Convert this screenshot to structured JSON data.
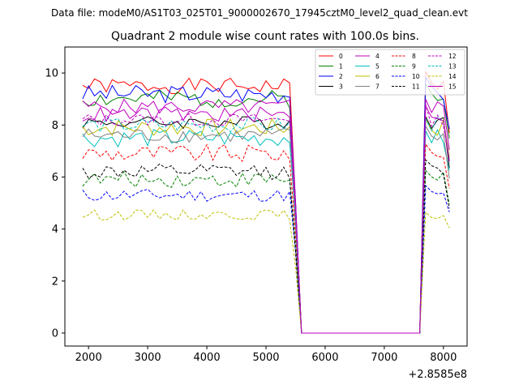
{
  "figure": {
    "suptitle": "Data file: modeM0/AS1T03_025T01_9000002670_17945cztM0_level2_quad_clean.evt",
    "title": "Quadrant 2 module wise count rates with 100.0s bins.",
    "x_offset_label": "+2.8585e8"
  },
  "chart_data": {
    "type": "line",
    "title": "Quadrant 2 module wise count rates with 100.0s bins.",
    "xlabel": "",
    "ylabel": "",
    "x_offset": 285850000,
    "xlim": [
      1600,
      8400
    ],
    "ylim": [
      -0.5,
      11
    ],
    "x_ticks": [
      2000,
      3000,
      4000,
      5000,
      6000,
      7000,
      8000
    ],
    "y_ticks": [
      0,
      2,
      4,
      6,
      8,
      10
    ],
    "grid": false,
    "legend_position": "top-right",
    "series": [
      {
        "name": "0",
        "color": "#ff0000",
        "dash": "solid",
        "base": 9.5,
        "amp": 0.3,
        "seed": 1
      },
      {
        "name": "1",
        "color": "#008000",
        "dash": "solid",
        "base": 9.0,
        "amp": 0.35,
        "seed": 2
      },
      {
        "name": "2",
        "color": "#0000ff",
        "dash": "solid",
        "base": 9.2,
        "amp": 0.35,
        "seed": 3
      },
      {
        "name": "3",
        "color": "#000000",
        "dash": "solid",
        "base": 8.1,
        "amp": 0.25,
        "seed": 4
      },
      {
        "name": "4",
        "color": "#bf00bf",
        "dash": "solid",
        "base": 8.7,
        "amp": 0.3,
        "seed": 5
      },
      {
        "name": "5",
        "color": "#00bfbf",
        "dash": "solid",
        "base": 7.5,
        "amp": 0.35,
        "seed": 6
      },
      {
        "name": "6",
        "color": "#bfbf00",
        "dash": "solid",
        "base": 7.9,
        "amp": 0.35,
        "seed": 7
      },
      {
        "name": "7",
        "color": "#808080",
        "dash": "solid",
        "base": 7.6,
        "amp": 0.3,
        "seed": 8
      },
      {
        "name": "8",
        "color": "#ff0000",
        "dash": "dashed",
        "base": 6.9,
        "amp": 0.35,
        "seed": 9
      },
      {
        "name": "9",
        "color": "#008000",
        "dash": "dashed",
        "base": 5.9,
        "amp": 0.3,
        "seed": 10
      },
      {
        "name": "10",
        "color": "#0000ff",
        "dash": "dashed",
        "base": 5.3,
        "amp": 0.25,
        "seed": 11
      },
      {
        "name": "11",
        "color": "#000000",
        "dash": "dashed",
        "base": 6.2,
        "amp": 0.3,
        "seed": 12
      },
      {
        "name": "12",
        "color": "#bf00bf",
        "dash": "dashed",
        "base": 8.2,
        "amp": 0.25,
        "seed": 13
      },
      {
        "name": "13",
        "color": "#00bfbf",
        "dash": "dashed",
        "base": 8.0,
        "amp": 0.3,
        "seed": 14
      },
      {
        "name": "14",
        "color": "#bfbf00",
        "dash": "dashed",
        "base": 4.55,
        "amp": 0.2,
        "seed": 15
      },
      {
        "name": "15",
        "color": "#bf00bf",
        "dash": "solid",
        "base": 8.4,
        "amp": 0.3,
        "seed": 16
      }
    ],
    "segments": [
      {
        "from": 1900,
        "to": 5500,
        "step": 100,
        "active": true
      },
      {
        "from": 5600,
        "to": 7600,
        "step": 100,
        "active": false
      },
      {
        "from": 7700,
        "to": 8100,
        "step": 100,
        "active": true
      }
    ]
  }
}
